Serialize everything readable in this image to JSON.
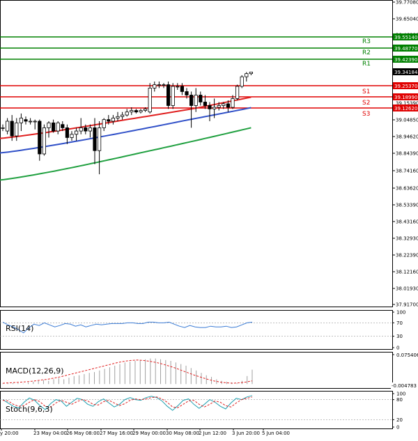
{
  "chart_data": {
    "type": "candlestick",
    "x_ticks": [
      "y 20:00",
      "23 May 04:00",
      "26 May 08:00",
      "27 May 16:00",
      "29 May 00:00",
      "30 May 08:00",
      "2 Jun 12:00",
      "3 Jun 20:00",
      "5 Jun 04:00"
    ],
    "price_axis": {
      "ylim": [
        37.917,
        39.7708
      ],
      "ticks": [
        "39.77080",
        "39.65040",
        "39.46080",
        "39.04850",
        "38.94620",
        "38.84390",
        "38.74160",
        "38.63620",
        "38.53390",
        "38.43160",
        "38.32930",
        "38.22390",
        "38.12160",
        "38.01930",
        "37.91700"
      ]
    },
    "levels": [
      {
        "name": "R3",
        "label": "39.55140",
        "value": 39.5514,
        "color": "#008000"
      },
      {
        "name": "R2",
        "label": "39.48770",
        "value": 39.4877,
        "color": "#008000"
      },
      {
        "name": "R1",
        "label": "39.42390",
        "value": 39.4239,
        "color": "#008000"
      },
      {
        "name": "S1",
        "label": "39.25370",
        "value": 39.2537,
        "color": "#e00000"
      },
      {
        "name": "S2",
        "label": "39.18990",
        "value": 39.1899,
        "color": "#e00000"
      },
      {
        "name": "S3",
        "label": "39.12620",
        "value": 39.1262,
        "color": "#e00000"
      }
    ],
    "levels_hidden_tick": "39.15390",
    "current_price": {
      "label": "39.34184",
      "value": 39.34184
    },
    "candles": [
      {
        "o": 39.0,
        "h": 39.02,
        "l": 38.98,
        "c": 39.0
      },
      {
        "o": 38.98,
        "h": 39.06,
        "l": 38.96,
        "c": 39.04
      },
      {
        "o": 39.04,
        "h": 39.08,
        "l": 38.92,
        "c": 38.95
      },
      {
        "o": 38.95,
        "h": 39.06,
        "l": 38.92,
        "c": 39.03
      },
      {
        "o": 39.03,
        "h": 39.09,
        "l": 38.98,
        "c": 39.06
      },
      {
        "o": 39.05,
        "h": 39.07,
        "l": 39.02,
        "c": 39.04
      },
      {
        "o": 39.04,
        "h": 39.06,
        "l": 39.02,
        "c": 39.04
      },
      {
        "o": 39.04,
        "h": 39.05,
        "l": 38.99,
        "c": 39.04
      },
      {
        "o": 39.04,
        "h": 39.05,
        "l": 38.8,
        "c": 38.84
      },
      {
        "o": 38.84,
        "h": 39.02,
        "l": 38.83,
        "c": 39.0
      },
      {
        "o": 39.0,
        "h": 39.04,
        "l": 38.94,
        "c": 39.03
      },
      {
        "o": 39.03,
        "h": 39.05,
        "l": 38.97,
        "c": 38.98
      },
      {
        "o": 38.98,
        "h": 39.04,
        "l": 38.96,
        "c": 39.03
      },
      {
        "o": 39.02,
        "h": 39.04,
        "l": 38.98,
        "c": 39.0
      },
      {
        "o": 39.0,
        "h": 39.02,
        "l": 38.9,
        "c": 38.94
      },
      {
        "o": 38.94,
        "h": 38.98,
        "l": 38.92,
        "c": 38.96
      },
      {
        "o": 38.96,
        "h": 39.0,
        "l": 38.92,
        "c": 38.98
      },
      {
        "o": 38.98,
        "h": 39.06,
        "l": 38.96,
        "c": 39.0
      },
      {
        "o": 39.0,
        "h": 39.02,
        "l": 38.96,
        "c": 38.98
      },
      {
        "o": 38.98,
        "h": 39.02,
        "l": 38.94,
        "c": 39.0
      },
      {
        "o": 39.0,
        "h": 39.06,
        "l": 38.78,
        "c": 38.86
      },
      {
        "o": 38.86,
        "h": 39.04,
        "l": 38.72,
        "c": 39.0
      },
      {
        "o": 39.0,
        "h": 39.06,
        "l": 38.98,
        "c": 39.05
      },
      {
        "o": 39.05,
        "h": 39.08,
        "l": 39.02,
        "c": 39.04
      },
      {
        "o": 39.04,
        "h": 39.08,
        "l": 39.02,
        "c": 39.06
      },
      {
        "o": 39.06,
        "h": 39.1,
        "l": 39.04,
        "c": 39.07
      },
      {
        "o": 39.07,
        "h": 39.1,
        "l": 39.05,
        "c": 39.08
      },
      {
        "o": 39.08,
        "h": 39.12,
        "l": 39.07,
        "c": 39.1
      },
      {
        "o": 39.1,
        "h": 39.13,
        "l": 39.08,
        "c": 39.11
      },
      {
        "o": 39.11,
        "h": 39.12,
        "l": 39.09,
        "c": 39.1
      },
      {
        "o": 39.1,
        "h": 39.12,
        "l": 39.09,
        "c": 39.11
      },
      {
        "o": 39.11,
        "h": 39.13,
        "l": 39.1,
        "c": 39.12
      },
      {
        "o": 39.1,
        "h": 39.27,
        "l": 39.09,
        "c": 39.24
      },
      {
        "o": 39.24,
        "h": 39.28,
        "l": 39.22,
        "c": 39.26
      },
      {
        "o": 39.26,
        "h": 39.28,
        "l": 39.24,
        "c": 39.26
      },
      {
        "o": 39.26,
        "h": 39.27,
        "l": 39.24,
        "c": 39.26
      },
      {
        "o": 39.26,
        "h": 39.28,
        "l": 39.12,
        "c": 39.14
      },
      {
        "o": 39.14,
        "h": 39.27,
        "l": 39.12,
        "c": 39.25
      },
      {
        "o": 39.25,
        "h": 39.27,
        "l": 39.23,
        "c": 39.25
      },
      {
        "o": 39.25,
        "h": 39.27,
        "l": 39.2,
        "c": 39.22
      },
      {
        "o": 39.22,
        "h": 39.24,
        "l": 39.18,
        "c": 39.2
      },
      {
        "o": 39.2,
        "h": 39.22,
        "l": 39.0,
        "c": 39.14
      },
      {
        "o": 39.14,
        "h": 39.24,
        "l": 39.1,
        "c": 39.2
      },
      {
        "o": 39.2,
        "h": 39.22,
        "l": 39.14,
        "c": 39.16
      },
      {
        "o": 39.16,
        "h": 39.2,
        "l": 39.12,
        "c": 39.14
      },
      {
        "o": 39.14,
        "h": 39.16,
        "l": 39.04,
        "c": 39.12
      },
      {
        "o": 39.12,
        "h": 39.18,
        "l": 39.06,
        "c": 39.13
      },
      {
        "o": 39.13,
        "h": 39.16,
        "l": 39.11,
        "c": 39.14
      },
      {
        "o": 39.14,
        "h": 39.16,
        "l": 39.12,
        "c": 39.15
      },
      {
        "o": 39.15,
        "h": 39.17,
        "l": 39.1,
        "c": 39.13
      },
      {
        "o": 39.13,
        "h": 39.2,
        "l": 39.12,
        "c": 39.18
      },
      {
        "o": 39.18,
        "h": 39.26,
        "l": 39.17,
        "c": 39.25
      },
      {
        "o": 39.25,
        "h": 39.32,
        "l": 39.24,
        "c": 39.31
      },
      {
        "o": 39.31,
        "h": 39.34,
        "l": 39.28,
        "c": 39.33
      },
      {
        "o": 39.33,
        "h": 39.34,
        "l": 39.32,
        "c": 39.34
      }
    ],
    "moving_averages": [
      {
        "color": "#e02020",
        "start": 38.935,
        "end": 39.188
      },
      {
        "color": "#3050c8",
        "start": 38.846,
        "end": 39.128
      },
      {
        "color": "#20a040",
        "start": 38.685,
        "end": 39.0
      }
    ],
    "indicators": [
      {
        "name": "RSI(14)",
        "ticks": [
          "100",
          "70",
          "30",
          "0"
        ],
        "values": [
          72,
          64,
          58,
          50,
          40,
          55,
          66,
          62,
          70,
          64,
          58,
          62,
          68,
          66,
          60,
          64,
          58,
          62,
          66,
          64,
          66,
          68,
          68,
          68,
          70,
          70,
          68,
          68,
          72,
          72,
          70,
          70,
          72,
          66,
          60,
          56,
          62,
          58,
          56,
          56,
          60,
          58,
          58,
          60,
          56,
          58,
          64,
          70,
          72
        ]
      },
      {
        "name": "MACD(12,26,9)",
        "ticks": [
          "0.075406",
          "-0.004783"
        ],
        "hist": [
          0.001,
          0.002,
          0.003,
          0.002,
          0.001,
          0.004,
          0.006,
          0.008,
          0.01,
          0.008,
          0.012,
          0.015,
          0.012,
          0.016,
          0.02,
          0.022,
          0.025,
          0.028,
          0.03,
          0.034,
          0.038,
          0.042,
          0.046,
          0.05,
          0.054,
          0.056,
          0.058,
          0.06,
          0.062,
          0.064,
          0.064,
          0.062,
          0.06,
          0.058,
          0.054,
          0.05,
          0.046,
          0.04,
          0.034,
          0.028,
          0.022,
          0.018,
          0.012,
          0.008,
          0.006,
          0.004,
          0.002,
          0.008,
          0.02,
          0.036
        ],
        "signal": [
          0.002,
          0.003,
          0.004,
          0.005,
          0.006,
          0.008,
          0.01,
          0.012,
          0.015,
          0.018,
          0.022,
          0.026,
          0.03,
          0.034,
          0.038,
          0.042,
          0.046,
          0.05,
          0.054,
          0.057,
          0.059,
          0.06,
          0.059,
          0.057,
          0.054,
          0.05,
          0.045,
          0.04,
          0.034,
          0.028,
          0.022,
          0.017,
          0.012,
          0.008,
          0.005,
          0.003,
          0.002,
          0.003,
          0.005,
          0.008
        ]
      },
      {
        "name": "Stoch(9,6,3)",
        "ticks": [
          "100",
          "80",
          "20",
          "0"
        ],
        "main": [
          80,
          70,
          60,
          55,
          72,
          85,
          78,
          62,
          50,
          68,
          80,
          76,
          60,
          72,
          84,
          80,
          66,
          60,
          74,
          82,
          70,
          58,
          66,
          80,
          86,
          80,
          78,
          86,
          90,
          86,
          76,
          60,
          48,
          62,
          78,
          82,
          66,
          54,
          66,
          80,
          72,
          60,
          52,
          70,
          84,
          80,
          88,
          92
        ],
        "signal": [
          78,
          76,
          66,
          60,
          62,
          72,
          80,
          74,
          60,
          58,
          70,
          78,
          72,
          66,
          74,
          80,
          76,
          66,
          64,
          74,
          78,
          70,
          62,
          68,
          78,
          82,
          80,
          82,
          86,
          88,
          82,
          72,
          58,
          56,
          66,
          76,
          78,
          66,
          58,
          66,
          76,
          72,
          62,
          58,
          70,
          80,
          84,
          88
        ]
      }
    ]
  }
}
